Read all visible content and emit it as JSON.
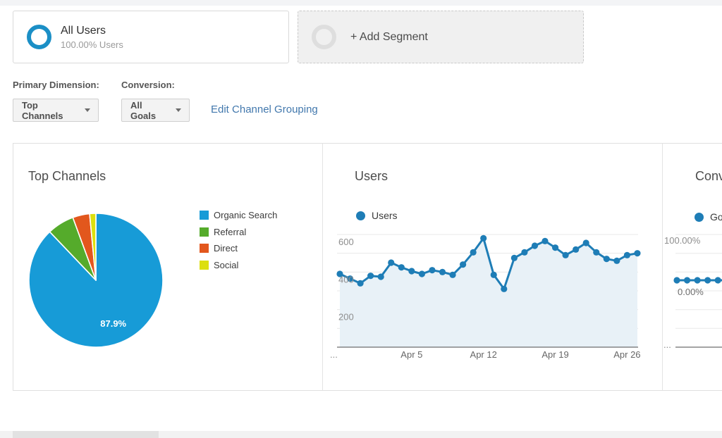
{
  "segments": {
    "all_users": {
      "title": "All Users",
      "subtitle": "100.00% Users"
    },
    "add_segment_label": "+ Add Segment"
  },
  "controls": {
    "primary_dimension_label": "Primary Dimension:",
    "primary_dimension_value": "Top Channels",
    "conversion_label": "Conversion:",
    "conversion_value": "All Goals",
    "edit_channel_grouping_link": "Edit Channel Grouping"
  },
  "colors": {
    "segment_ring_blue": "#1b8fc6",
    "link_blue": "#4278ad",
    "line_blue": "#1e7db6",
    "line_area_fill": "#e8f1f7",
    "grid_line": "#e8e8e8",
    "axis_line": "#4a4a4a",
    "pie_blue": "#179bd7",
    "pie_green": "#55ab2b",
    "pie_orange": "#e2571d",
    "pie_yellow": "#dcdf0e"
  },
  "chart_data": [
    {
      "type": "pie",
      "title": "Top Channels",
      "labels": [
        "Organic Search",
        "Referral",
        "Direct",
        "Social"
      ],
      "values": [
        87.9,
        6.5,
        4.1,
        1.5
      ],
      "colors": [
        "#179bd7",
        "#55ab2b",
        "#e2571d",
        "#dcdf0e"
      ],
      "data_label": "87.9%",
      "legend_position": "right"
    },
    {
      "type": "line",
      "title": "Users",
      "legend": "Users",
      "series": [
        {
          "name": "Users",
          "color": "#1e7db6",
          "values": [
            390,
            365,
            340,
            380,
            375,
            450,
            425,
            405,
            390,
            410,
            400,
            385,
            440,
            505,
            580,
            385,
            310,
            475,
            505,
            540,
            565,
            530,
            490,
            520,
            555,
            505,
            470,
            460,
            490,
            500
          ]
        }
      ],
      "x_tick_labels": [
        "...",
        "Apr 5",
        "Apr 12",
        "Apr 19",
        "Apr 26"
      ],
      "x_tick_indices": [
        0,
        7,
        14,
        21,
        28
      ],
      "y_tick_labels": [
        "600",
        "400",
        "200"
      ],
      "y_tick_values": [
        600,
        400,
        200
      ],
      "ylim": [
        0,
        640
      ],
      "grid_interval": 100,
      "area": true,
      "legend_position": "top"
    },
    {
      "type": "line",
      "title": "Conv",
      "legend": "Go",
      "series": [
        {
          "name": "Go",
          "color": "#1e7db6",
          "values": [
            0,
            0,
            0,
            0,
            0,
            0
          ]
        }
      ],
      "y_tick_labels": [
        "100.00%",
        "0.00%"
      ],
      "x_tick_label": "...",
      "area": false,
      "note_clipped": "panel truncated at right edge of viewport"
    }
  ]
}
